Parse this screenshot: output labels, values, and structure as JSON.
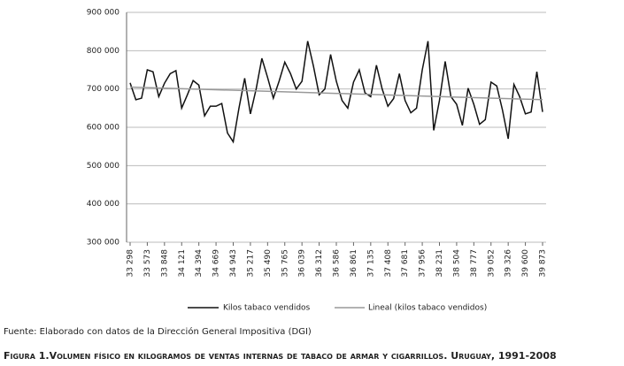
{
  "chart_data": {
    "type": "line",
    "title": "Figura 1.Volumen físico en kilogramos de ventas internas de tabaco de armar y cigarrillos. Uruguay, 1991-2008",
    "source": "Fuente: Elaborado con datos de la Dirección General Impositiva (DGI)",
    "categories": [
      "33 298",
      null,
      null,
      "33 573",
      null,
      null,
      "33 848",
      null,
      null,
      "34 121",
      null,
      null,
      "34 394",
      null,
      null,
      "34 669",
      null,
      null,
      "34 943",
      null,
      null,
      "35 217",
      null,
      null,
      "35 490",
      null,
      null,
      "35 765",
      null,
      null,
      "36 039",
      null,
      null,
      "36 312",
      null,
      null,
      "36 586",
      null,
      null,
      "36 861",
      null,
      null,
      "37 135",
      null,
      null,
      "37 408",
      null,
      null,
      "37 681",
      null,
      null,
      "37 956",
      null,
      null,
      "38 231",
      null,
      null,
      "38 504",
      null,
      null,
      "38 777",
      null,
      null,
      "39 052",
      null,
      null,
      "39 326",
      null,
      null,
      "39 600",
      null,
      null,
      "39 873"
    ],
    "series": [
      {
        "name": "Kilos tabaco vendidos",
        "color": "#111111",
        "values": [
          716000,
          672000,
          676000,
          750000,
          745000,
          680000,
          715000,
          740000,
          748000,
          650000,
          685000,
          722000,
          710000,
          630000,
          655000,
          655000,
          662000,
          585000,
          562000,
          650000,
          728000,
          635000,
          700000,
          780000,
          730000,
          676000,
          720000,
          770000,
          740000,
          700000,
          720000,
          825000,
          760000,
          685000,
          700000,
          790000,
          720000,
          670000,
          650000,
          718000,
          750000,
          690000,
          680000,
          762000,
          700000,
          655000,
          675000,
          740000,
          670000,
          638000,
          650000,
          750000,
          825000,
          592000,
          670000,
          772000,
          680000,
          660000,
          605000,
          702000,
          660000,
          608000,
          620000,
          718000,
          708000,
          645000,
          570000,
          712000,
          680000,
          635000,
          640000,
          745000,
          640000
        ]
      }
    ],
    "trend": {
      "name": "Lineal (kilos tabaco vendidos)",
      "color": "#999999",
      "values": [
        705000,
        672000
      ]
    },
    "ylim": [
      300000,
      900000
    ],
    "yticks": [
      {
        "value": 300000,
        "label": "300 000"
      },
      {
        "value": 400000,
        "label": "400 000"
      },
      {
        "value": 500000,
        "label": "500 000"
      },
      {
        "value": 600000,
        "label": "600 000"
      },
      {
        "value": 700000,
        "label": "700 000"
      },
      {
        "value": 800000,
        "label": "800 000"
      },
      {
        "value": 900000,
        "label": "900 000"
      }
    ],
    "grid": true
  }
}
